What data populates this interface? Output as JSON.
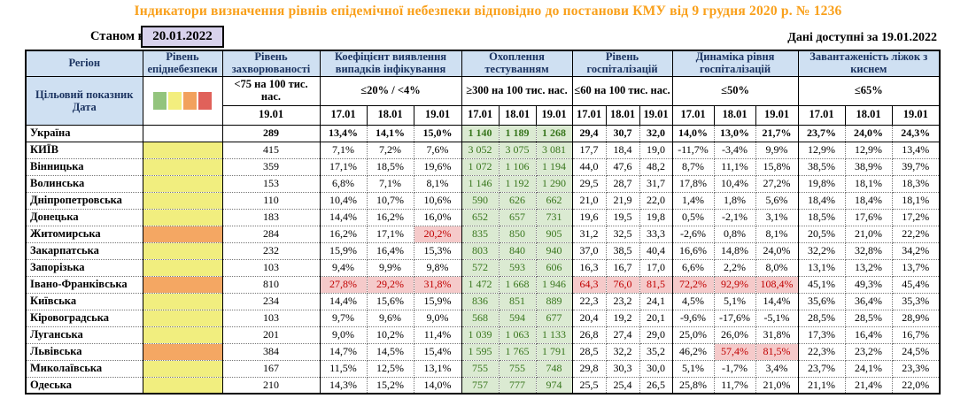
{
  "title": "Індикатори визначення рівнів епідемічної небезпеки відповідно до постанови КМУ від 9 грудня 2020 р. № 1236",
  "as_of": {
    "label": "Станом на",
    "date": "20.01.2022"
  },
  "available": {
    "label": "Дані доступні за",
    "date": "19.01.2022"
  },
  "colors": {
    "title_orange": "#f9a01b",
    "header_blue": "#cfe0f2",
    "asof_lavender": "#d8d2ec",
    "danger_yellow": "#f1ee7f",
    "danger_orange": "#f4a763",
    "testing_green_bg": "#dbead2",
    "testing_green_text": "#38761d",
    "alert_pink_bg": "#f5caca",
    "alert_red_text": "#c00000",
    "legend": [
      "#93c47d",
      "#f3ee7e",
      "#f2a15d",
      "#e0615a"
    ]
  },
  "header": {
    "region": "Регіон",
    "target_row_label": "Цільовий показник",
    "date_row_label": "Дата",
    "groups": [
      {
        "label": "Рівень епіднебезпеки",
        "target": "",
        "dates": [],
        "legend": true
      },
      {
        "label": "Рівень захворюваності",
        "target": "<75 на 100 тис. нас.",
        "dates": [
          "19.01"
        ]
      },
      {
        "label": "Коефіцієнт виявлення випадків інфікування",
        "target": "≤20% / <4%",
        "dates": [
          "17.01",
          "18.01",
          "19.01"
        ]
      },
      {
        "label": "Охоплення тестуванням",
        "target": "≥300 на 100 тис. нас.",
        "dates": [
          "17.01",
          "18.01",
          "19.01"
        ]
      },
      {
        "label": "Рівень госпіталізацій",
        "target": "≤60 на 100 тис. нас.",
        "dates": [
          "17.01",
          "18.01",
          "19.01"
        ]
      },
      {
        "label": "Динаміка рівня госпіталізацій",
        "target": "≤50%",
        "dates": [
          "17.01",
          "18.01",
          "19.01"
        ]
      },
      {
        "label": "Завантаженість ліжок з киснем",
        "target": "≤65%",
        "dates": [
          "17.01",
          "18.01",
          "19.01"
        ]
      }
    ]
  },
  "rows": [
    {
      "region": "Україна",
      "bold": true,
      "danger": "none",
      "incidence": "289",
      "detection": [
        "13,4%",
        "14,1%",
        "15,0%"
      ],
      "testing": [
        "1 140",
        "1 189",
        "1 268"
      ],
      "hosp": [
        "29,4",
        "30,7",
        "32,0"
      ],
      "dyn": [
        "14,0%",
        "13,0%",
        "21,7%"
      ],
      "beds": [
        "23,7%",
        "24,0%",
        "24,3%"
      ]
    },
    {
      "region": "КИЇВ",
      "danger": "yellow",
      "incidence": "415",
      "detection": [
        "7,1%",
        "7,2%",
        "7,6%"
      ],
      "testing": [
        "3 052",
        "3 075",
        "3 081"
      ],
      "hosp": [
        "17,7",
        "18,4",
        "19,0"
      ],
      "dyn": [
        "-11,7%",
        "-3,4%",
        "9,9%"
      ],
      "beds": [
        "12,9%",
        "12,9%",
        "13,4%"
      ]
    },
    {
      "region": "Вінницька",
      "danger": "yellow",
      "incidence": "359",
      "detection": [
        "17,1%",
        "18,5%",
        "19,6%"
      ],
      "testing": [
        "1 072",
        "1 106",
        "1 194"
      ],
      "hosp": [
        "44,0",
        "47,6",
        "48,2"
      ],
      "dyn": [
        "8,7%",
        "11,1%",
        "15,8%"
      ],
      "beds": [
        "38,5%",
        "38,9%",
        "39,7%"
      ]
    },
    {
      "region": "Волинська",
      "danger": "yellow",
      "incidence": "153",
      "detection": [
        "6,8%",
        "7,1%",
        "8,1%"
      ],
      "testing": [
        "1 146",
        "1 192",
        "1 290"
      ],
      "hosp": [
        "29,5",
        "28,7",
        "31,7"
      ],
      "dyn": [
        "17,8%",
        "10,4%",
        "27,2%"
      ],
      "beds": [
        "19,8%",
        "18,1%",
        "18,3%"
      ]
    },
    {
      "region": "Дніпропетровська",
      "danger": "yellow",
      "incidence": "110",
      "detection": [
        "10,4%",
        "10,7%",
        "10,6%"
      ],
      "testing": [
        "590",
        "626",
        "662"
      ],
      "hosp": [
        "21,0",
        "21,9",
        "22,0"
      ],
      "dyn": [
        "1,4%",
        "1,8%",
        "5,6%"
      ],
      "beds": [
        "18,4%",
        "18,4%",
        "18,1%"
      ]
    },
    {
      "region": "Донецька",
      "danger": "yellow",
      "incidence": "183",
      "detection": [
        "14,4%",
        "16,2%",
        "16,0%"
      ],
      "testing": [
        "652",
        "657",
        "731"
      ],
      "hosp": [
        "19,6",
        "19,5",
        "19,8"
      ],
      "dyn": [
        "0,5%",
        "-2,1%",
        "3,1%"
      ],
      "beds": [
        "18,5%",
        "17,6%",
        "17,2%"
      ]
    },
    {
      "region": "Житомирська",
      "danger": "orange",
      "incidence": "284",
      "detection": [
        "16,2%",
        "17,1%",
        "20,2%"
      ],
      "detection_alert": [
        0,
        0,
        1
      ],
      "testing": [
        "835",
        "850",
        "905"
      ],
      "hosp": [
        "31,2",
        "32,5",
        "33,3"
      ],
      "dyn": [
        "-2,6%",
        "0,8%",
        "8,1%"
      ],
      "beds": [
        "20,5%",
        "21,0%",
        "22,2%"
      ]
    },
    {
      "region": "Закарпатська",
      "danger": "yellow",
      "incidence": "232",
      "detection": [
        "15,9%",
        "16,4%",
        "15,3%"
      ],
      "testing": [
        "803",
        "840",
        "940"
      ],
      "hosp": [
        "37,0",
        "38,5",
        "40,4"
      ],
      "dyn": [
        "16,6%",
        "14,8%",
        "24,0%"
      ],
      "beds": [
        "32,2%",
        "32,8%",
        "34,2%"
      ]
    },
    {
      "region": "Запорізька",
      "danger": "yellow",
      "incidence": "103",
      "detection": [
        "9,4%",
        "9,9%",
        "9,8%"
      ],
      "testing": [
        "572",
        "593",
        "606"
      ],
      "hosp": [
        "16,3",
        "16,7",
        "17,0"
      ],
      "dyn": [
        "6,6%",
        "2,2%",
        "8,0%"
      ],
      "beds": [
        "13,1%",
        "13,2%",
        "13,7%"
      ]
    },
    {
      "region": "Івано-Франківська",
      "danger": "orange",
      "incidence": "810",
      "detection": [
        "27,8%",
        "29,2%",
        "31,8%"
      ],
      "detection_alert": [
        1,
        1,
        1
      ],
      "testing": [
        "1 472",
        "1 668",
        "1 946"
      ],
      "hosp": [
        "64,3",
        "76,0",
        "81,5"
      ],
      "hosp_alert": [
        1,
        1,
        1
      ],
      "dyn": [
        "72,2%",
        "92,9%",
        "108,4%"
      ],
      "dyn_alert": [
        1,
        1,
        1
      ],
      "beds": [
        "45,1%",
        "49,3%",
        "45,4%"
      ]
    },
    {
      "region": "Київська",
      "danger": "yellow",
      "incidence": "234",
      "detection": [
        "14,4%",
        "15,6%",
        "15,9%"
      ],
      "testing": [
        "836",
        "851",
        "889"
      ],
      "hosp": [
        "22,3",
        "23,2",
        "24,1"
      ],
      "dyn": [
        "4,5%",
        "5,1%",
        "14,4%"
      ],
      "beds": [
        "35,6%",
        "36,4%",
        "35,3%"
      ]
    },
    {
      "region": "Кіровоградська",
      "danger": "yellow",
      "incidence": "103",
      "detection": [
        "9,7%",
        "9,6%",
        "9,0%"
      ],
      "testing": [
        "568",
        "594",
        "677"
      ],
      "hosp": [
        "20,4",
        "19,2",
        "20,1"
      ],
      "dyn": [
        "-9,6%",
        "-17,6%",
        "-5,1%"
      ],
      "beds": [
        "28,5%",
        "28,5%",
        "28,9%"
      ]
    },
    {
      "region": "Луганська",
      "danger": "yellow",
      "incidence": "201",
      "detection": [
        "9,0%",
        "10,2%",
        "11,4%"
      ],
      "testing": [
        "1 039",
        "1 063",
        "1 133"
      ],
      "hosp": [
        "26,8",
        "27,4",
        "29,0"
      ],
      "dyn": [
        "25,0%",
        "26,0%",
        "31,8%"
      ],
      "beds": [
        "17,3%",
        "16,4%",
        "16,7%"
      ]
    },
    {
      "region": "Львівська",
      "danger": "orange",
      "incidence": "384",
      "detection": [
        "14,7%",
        "14,5%",
        "15,4%"
      ],
      "testing": [
        "1 595",
        "1 765",
        "1 791"
      ],
      "hosp": [
        "28,5",
        "32,2",
        "35,2"
      ],
      "dyn": [
        "46,2%",
        "57,4%",
        "81,5%"
      ],
      "dyn_alert": [
        0,
        1,
        1
      ],
      "beds": [
        "22,3%",
        "23,2%",
        "24,5%"
      ]
    },
    {
      "region": "Миколаївська",
      "danger": "yellow",
      "incidence": "167",
      "detection": [
        "11,5%",
        "12,5%",
        "13,1%"
      ],
      "testing": [
        "755",
        "755",
        "748"
      ],
      "hosp": [
        "29,8",
        "30,3",
        "30,0"
      ],
      "dyn": [
        "5,1%",
        "-1,7%",
        "3,4%"
      ],
      "beds": [
        "23,7%",
        "24,1%",
        "23,3%"
      ]
    },
    {
      "region": "Одеська",
      "danger": "yellow",
      "incidence": "210",
      "detection": [
        "14,3%",
        "15,2%",
        "14,0%"
      ],
      "testing": [
        "757",
        "777",
        "974"
      ],
      "hosp": [
        "25,5",
        "25,4",
        "26,5"
      ],
      "dyn": [
        "25,8%",
        "11,7%",
        "21,0%"
      ],
      "beds": [
        "21,1%",
        "21,4%",
        "22,0%"
      ]
    }
  ]
}
